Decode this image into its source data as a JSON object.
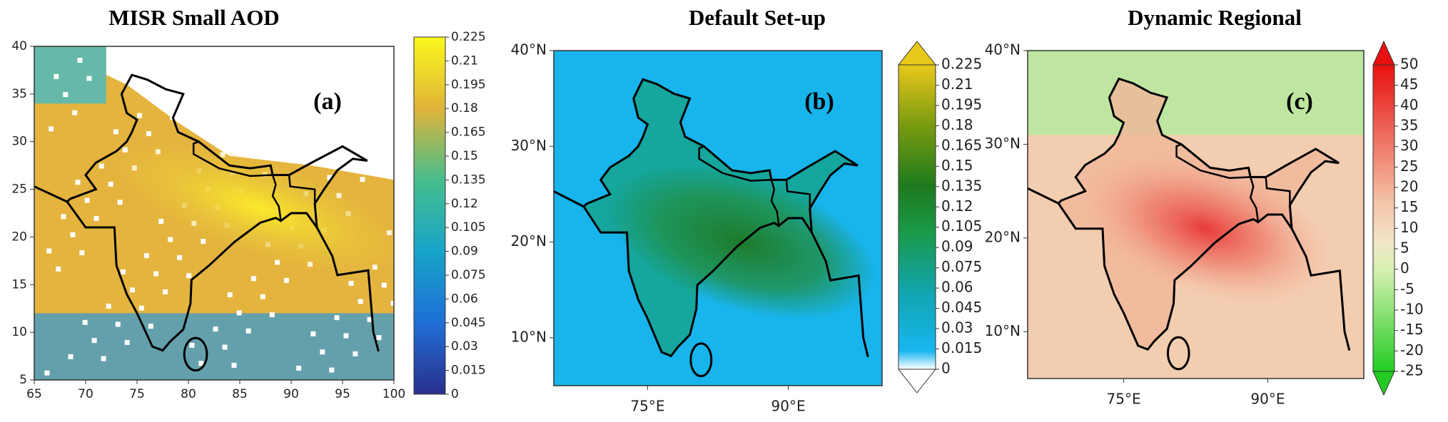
{
  "panels": [
    {
      "title": "MISR Small AOD",
      "label": "(a)",
      "xlim": [
        65,
        100
      ],
      "ylim": [
        5,
        40
      ],
      "xticks": [
        65,
        70,
        75,
        80,
        85,
        90,
        95,
        100
      ],
      "yticks": [
        5,
        10,
        15,
        20,
        25,
        30,
        35,
        40
      ],
      "colorbar_ticks": [
        0,
        0.015,
        0.03,
        0.045,
        0.06,
        0.075,
        0.09,
        0.105,
        0.12,
        0.135,
        0.15,
        0.165,
        0.18,
        0.195,
        0.21,
        0.225
      ]
    },
    {
      "title": "Default Set-up",
      "label": "(b)",
      "xlim": [
        65,
        100
      ],
      "ylim": [
        5,
        40
      ],
      "xticks": [
        {
          "value": 75,
          "label": "75°E"
        },
        {
          "value": 90,
          "label": "90°E"
        }
      ],
      "yticks": [
        {
          "value": 10,
          "label": "10°N"
        },
        {
          "value": 20,
          "label": "20°N"
        },
        {
          "value": 30,
          "label": "30°N"
        },
        {
          "value": 40,
          "label": "40°N"
        }
      ],
      "colorbar_ticks": [
        0,
        0.015,
        0.03,
        0.045,
        0.06,
        0.075,
        0.09,
        0.105,
        0.12,
        0.135,
        0.15,
        0.165,
        0.18,
        0.195,
        0.21,
        0.225
      ]
    },
    {
      "title": "Dynamic Regional",
      "label": "(c)",
      "xlim": [
        65,
        100
      ],
      "ylim": [
        5,
        40
      ],
      "xticks": [
        {
          "value": 75,
          "label": "75°E"
        },
        {
          "value": 90,
          "label": "90°E"
        }
      ],
      "yticks": [
        {
          "value": 10,
          "label": "10°N"
        },
        {
          "value": 20,
          "label": "20°N"
        },
        {
          "value": 30,
          "label": "30°N"
        },
        {
          "value": 40,
          "label": "40°N"
        }
      ],
      "colorbar_ticks": [
        -25,
        -20,
        -15,
        -10,
        -5,
        0,
        5,
        10,
        15,
        20,
        25,
        30,
        35,
        40,
        45,
        50
      ]
    }
  ]
}
